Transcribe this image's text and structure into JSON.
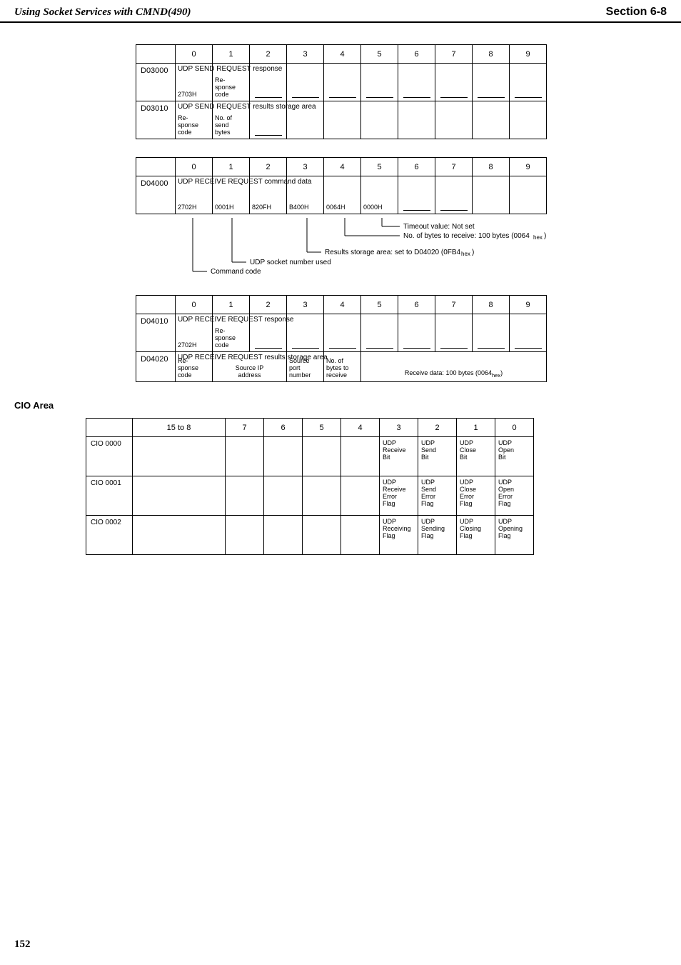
{
  "header": {
    "left": "Using Socket Services with CMND(490)",
    "right": "Section 6-8"
  },
  "cols": [
    "0",
    "1",
    "2",
    "3",
    "4",
    "5",
    "6",
    "7",
    "8",
    "9"
  ],
  "tbl1": {
    "rows": [
      {
        "label": "D03000",
        "span_label": "UDP SEND REQUEST response",
        "cells": [
          "2703H",
          "Re-\nsponse\ncode",
          "",
          "",
          "",
          "",
          "",
          "",
          "",
          ""
        ],
        "underline_from": 2
      },
      {
        "label": "D03010",
        "span_label": "UDP SEND REQUEST results storage area",
        "cells": [
          "Re-\nsponse\ncode",
          "No. of\nsend\nbytes",
          "",
          "",
          "",
          "",
          "",
          "",
          "",
          ""
        ],
        "underline_from": 2,
        "underline_to": 2
      }
    ]
  },
  "tbl2": {
    "rows": [
      {
        "label": "D04000",
        "span_label": "UDP RECEIVE REQUEST command data",
        "cells": [
          "2702H",
          "0001H",
          "820FH",
          "B400H",
          "0064H",
          "0000H",
          "",
          "",
          "",
          ""
        ],
        "underline_from": 6,
        "underline_to": 7
      }
    ]
  },
  "notes2": {
    "lines": [
      "Timeout value: Not set",
      "No. of bytes to receive: 100 bytes (0064_hex)",
      "Results storage area: set to D04020 (0FB4_hex)",
      "UDP socket number used",
      "Command code"
    ]
  },
  "tbl3": {
    "rows": [
      {
        "label": "D04010",
        "span_label": "UDP RECEIVE REQUEST response",
        "cells": [
          "2702H",
          "Re-\nsponse\ncode",
          "",
          "",
          "",
          "",
          "",
          "",
          "",
          ""
        ],
        "underline_from": 2
      },
      {
        "label": "D04020",
        "span_label": "UDP RECEIVE REQUEST results storage area",
        "cells_custom": true
      }
    ],
    "row2_cells": {
      "c0": "Re-\nsponse\ncode",
      "c1_2": "Source IP\naddress",
      "c3": "Source\nport\nnumber",
      "c4": "No. of\nbytes to\nreceive",
      "c5_9": "Receive data: 100 bytes (0064_hex)"
    }
  },
  "cio": {
    "label": "CIO Area",
    "cols": [
      "15 to 8",
      "7",
      "6",
      "5",
      "4",
      "3",
      "2",
      "1",
      "0"
    ],
    "rows": [
      {
        "label": "CIO 0000",
        "cells": [
          "",
          "",
          "",
          "",
          "",
          "UDP\nReceive\nBit",
          "UDP\nSend\nBit",
          "UDP\nClose\nBit",
          "UDP\nOpen\nBit"
        ]
      },
      {
        "label": "CIO 0001",
        "cells": [
          "",
          "",
          "",
          "",
          "",
          "UDP\nReceive\nError\nFlag",
          "UDP\nSend\nError\nFlag",
          "UDP\nClose\nError\nFlag",
          "UDP\nOpen\nError\nFlag"
        ]
      },
      {
        "label": "CIO 0002",
        "cells": [
          "",
          "",
          "",
          "",
          "",
          "UDP\nReceiving\nFlag",
          "UDP\nSending\nFlag",
          "UDP\nClosing\nFlag",
          "UDP\nOpening\nFlag"
        ]
      }
    ]
  },
  "page": "152"
}
